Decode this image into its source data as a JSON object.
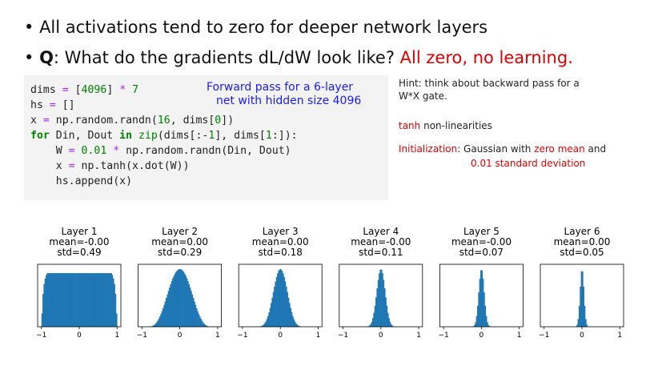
{
  "bullets": [
    {
      "text": "All activations tend to zero for deeper network layers"
    },
    {
      "label": "Q",
      "text": ": What do the gradients dL/dW look like? ",
      "answer": "All zero, no learning."
    }
  ],
  "code": [
    "dims = [4096] * 7",
    "hs = []",
    "x = np.random.randn(16, dims[0])",
    "for Din, Dout in zip(dims[:-1], dims[1:]):",
    "    W = 0.01 * np.random.randn(Din, Dout)",
    "    x = np.tanh(x.dot(W))",
    "    hs.append(x)"
  ],
  "code_note": [
    "Forward pass for a 6-layer",
    "net with hidden size 4096"
  ],
  "hint": [
    "Hint: think about backward pass for a",
    "W*X gate."
  ],
  "tanh": {
    "highlight": "tanh",
    "text": " non-linearities"
  },
  "init": {
    "label": "Initialization",
    "text1": ": Gaussian with ",
    "highlight1": "zero mean",
    "text2": " and",
    "highlight2": "0.01 standard deviation"
  },
  "layers": [
    {
      "title": "Layer 1",
      "mean": "mean=-0.00",
      "std": "std=0.49"
    },
    {
      "title": "Layer 2",
      "mean": "mean=0.00",
      "std": "std=0.29"
    },
    {
      "title": "Layer 3",
      "mean": "mean=0.00",
      "std": "std=0.18"
    },
    {
      "title": "Layer 4",
      "mean": "mean=-0.00",
      "std": "std=0.11"
    },
    {
      "title": "Layer 5",
      "mean": "mean=-0.00",
      "std": "std=0.07"
    },
    {
      "title": "Layer 6",
      "mean": "mean=0.00",
      "std": "std=0.05"
    }
  ],
  "hist_xlim": [
    -1.1,
    1.1
  ],
  "hist_xticks": [
    {
      "value": -1,
      "label": "−1"
    },
    0,
    1
  ],
  "hist_color": "#1f77b4"
}
